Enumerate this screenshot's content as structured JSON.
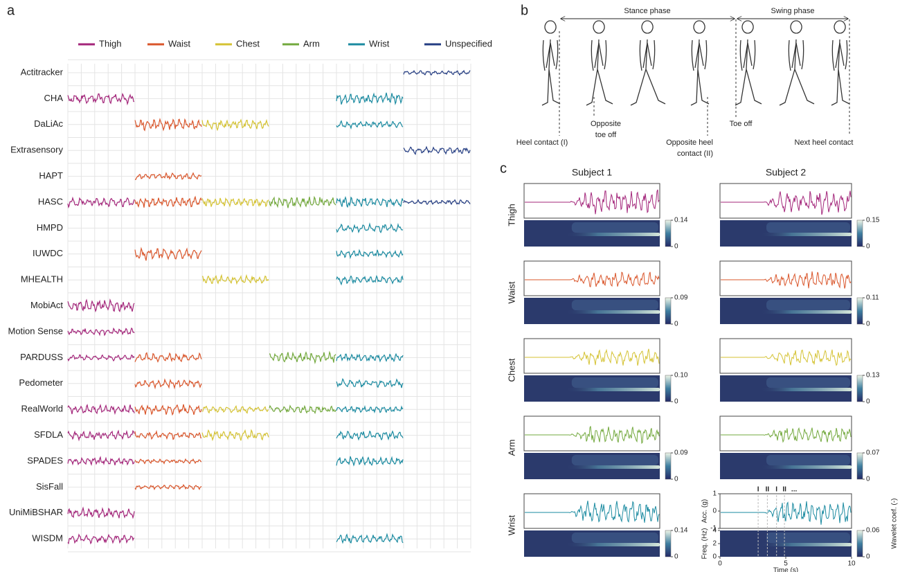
{
  "panel_a": {
    "label": "a",
    "legend": [
      {
        "name": "Thigh",
        "color": "#a3257a"
      },
      {
        "name": "Waist",
        "color": "#d9552a"
      },
      {
        "name": "Chest",
        "color": "#d4c232"
      },
      {
        "name": "Arm",
        "color": "#72a83c"
      },
      {
        "name": "Wrist",
        "color": "#1a8aa0"
      },
      {
        "name": "Unspecified",
        "color": "#233c82"
      }
    ],
    "datasets": [
      {
        "name": "Actitracker",
        "locations": [
          "Unspecified"
        ]
      },
      {
        "name": "CHA",
        "locations": [
          "Thigh",
          "Wrist"
        ]
      },
      {
        "name": "DaLiAc",
        "locations": [
          "Waist",
          "Chest",
          "Wrist"
        ]
      },
      {
        "name": "Extrasensory",
        "locations": [
          "Unspecified"
        ]
      },
      {
        "name": "HAPT",
        "locations": [
          "Waist"
        ]
      },
      {
        "name": "HASC",
        "locations": [
          "Thigh",
          "Waist",
          "Chest",
          "Arm",
          "Wrist",
          "Unspecified"
        ]
      },
      {
        "name": "HMPD",
        "locations": [
          "Wrist"
        ]
      },
      {
        "name": "IUWDC",
        "locations": [
          "Waist",
          "Wrist"
        ]
      },
      {
        "name": "MHEALTH",
        "locations": [
          "Chest",
          "Wrist"
        ]
      },
      {
        "name": "MobiAct",
        "locations": [
          "Thigh"
        ]
      },
      {
        "name": "Motion Sense",
        "locations": [
          "Thigh"
        ]
      },
      {
        "name": "PARDUSS",
        "locations": [
          "Thigh",
          "Waist",
          "Arm",
          "Wrist"
        ]
      },
      {
        "name": "Pedometer",
        "locations": [
          "Waist",
          "Wrist"
        ]
      },
      {
        "name": "RealWorld",
        "locations": [
          "Thigh",
          "Waist",
          "Chest",
          "Arm",
          "Wrist"
        ]
      },
      {
        "name": "SFDLA",
        "locations": [
          "Thigh",
          "Waist",
          "Chest",
          "Wrist"
        ]
      },
      {
        "name": "SPADES",
        "locations": [
          "Thigh",
          "Waist",
          "Wrist"
        ]
      },
      {
        "name": "SisFall",
        "locations": [
          "Waist"
        ]
      },
      {
        "name": "UniMiBSHAR",
        "locations": [
          "Thigh"
        ]
      },
      {
        "name": "WISDM",
        "locations": [
          "Thigh",
          "Wrist"
        ]
      }
    ]
  },
  "panel_b": {
    "label": "b",
    "phases": [
      {
        "name": "Stance phase"
      },
      {
        "name": "Swing phase"
      }
    ],
    "events": [
      {
        "lines": [
          "Heel contact (I)"
        ]
      },
      {
        "lines": [
          "Opposite",
          "toe off"
        ]
      },
      {
        "lines": [
          "Opposite heel",
          "contact (II)"
        ]
      },
      {
        "lines": [
          "Toe off"
        ]
      },
      {
        "lines": [
          "Next heel contact"
        ]
      }
    ]
  },
  "panel_c": {
    "label": "c",
    "subjects": [
      "Subject 1",
      "Subject 2"
    ],
    "rows": [
      {
        "name": "Thigh",
        "color": "#a3257a",
        "colorbar_max": [
          0.14,
          0.15
        ]
      },
      {
        "name": "Waist",
        "color": "#d9552a",
        "colorbar_max": [
          0.09,
          0.11
        ]
      },
      {
        "name": "Chest",
        "color": "#d4c232",
        "colorbar_max": [
          {
            "value": 0.1,
            "label": "0.10"
          },
          0.13
        ]
      },
      {
        "name": "Arm",
        "color": "#72a83c",
        "colorbar_max": [
          0.09,
          0.07
        ]
      },
      {
        "name": "Wrist",
        "color": "#1a8aa0",
        "colorbar_max": [
          0.14,
          0.06
        ]
      }
    ],
    "colorbar_min": 0,
    "detail_axes": {
      "acc_label": "Acc. (g)",
      "acc_ylim": [
        -1,
        1
      ],
      "acc_yticks": [
        -1,
        0,
        1
      ],
      "freq_label": "Freq. (Hz)",
      "freq_ylim": [
        0,
        4
      ],
      "freq_yticks": [
        0,
        2,
        4
      ],
      "time_label": "Time (s)",
      "xlim": [
        0,
        10
      ],
      "xticks": [
        0,
        5,
        10
      ],
      "colorbar_label": "Wavelet coef. (-)",
      "gait_events": [
        {
          "label": "I",
          "time": 2.9
        },
        {
          "label": "II",
          "time": 3.6
        },
        {
          "label": "I",
          "time": 4.3
        },
        {
          "label": "II",
          "time": 4.9
        }
      ],
      "continuation": "..."
    }
  }
}
